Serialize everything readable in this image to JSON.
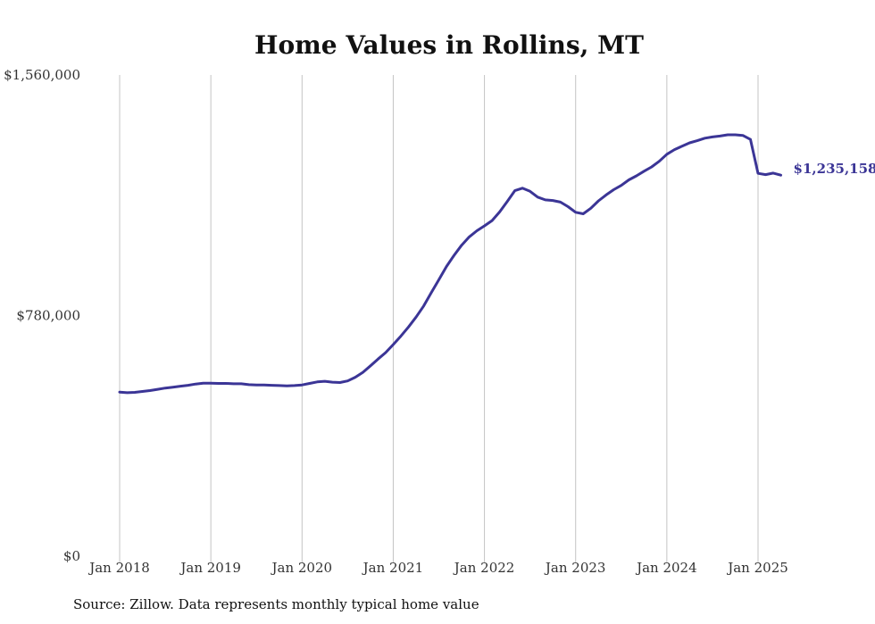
{
  "chart_data": {
    "type": "line",
    "title": "Home Values in Rollins, MT",
    "xlabel": "",
    "ylabel": "",
    "ylim": [
      0,
      1560000
    ],
    "yticks": [
      {
        "value": 0,
        "label": "$0"
      },
      {
        "value": 780000,
        "label": "$780,000"
      },
      {
        "value": 1560000,
        "label": "$1,560,000"
      }
    ],
    "xticks": [
      "Jan 2018",
      "Jan 2019",
      "Jan 2020",
      "Jan 2021",
      "Jan 2022",
      "Jan 2023",
      "Jan 2024",
      "Jan 2025"
    ],
    "grid": "vertical",
    "line_color": "#3b3596",
    "end_label": "$1,235,158",
    "series": [
      {
        "name": "",
        "x": [
          "2018-01",
          "2018-02",
          "2018-03",
          "2018-04",
          "2018-05",
          "2018-06",
          "2018-07",
          "2018-08",
          "2018-09",
          "2018-10",
          "2018-11",
          "2018-12",
          "2019-01",
          "2019-02",
          "2019-03",
          "2019-04",
          "2019-05",
          "2019-06",
          "2019-07",
          "2019-08",
          "2019-09",
          "2019-10",
          "2019-11",
          "2019-12",
          "2020-01",
          "2020-02",
          "2020-03",
          "2020-04",
          "2020-05",
          "2020-06",
          "2020-07",
          "2020-08",
          "2020-09",
          "2020-10",
          "2020-11",
          "2020-12",
          "2021-01",
          "2021-02",
          "2021-03",
          "2021-04",
          "2021-05",
          "2021-06",
          "2021-07",
          "2021-08",
          "2021-09",
          "2021-10",
          "2021-11",
          "2021-12",
          "2022-01",
          "2022-02",
          "2022-03",
          "2022-04",
          "2022-05",
          "2022-06",
          "2022-07",
          "2022-08",
          "2022-09",
          "2022-10",
          "2022-11",
          "2022-12",
          "2023-01",
          "2023-02",
          "2023-03",
          "2023-04",
          "2023-05",
          "2023-06",
          "2023-07",
          "2023-08",
          "2023-09",
          "2023-10",
          "2023-11",
          "2023-12",
          "2024-01",
          "2024-02",
          "2024-03",
          "2024-04",
          "2024-05",
          "2024-06",
          "2024-07",
          "2024-08",
          "2024-09",
          "2024-10",
          "2024-11",
          "2024-12",
          "2025-01",
          "2025-02",
          "2025-03",
          "2025-04"
        ],
        "values": [
          532000,
          530000,
          531000,
          534000,
          537000,
          541000,
          545000,
          548000,
          551000,
          554000,
          558000,
          561000,
          561000,
          560000,
          560000,
          559000,
          559000,
          556000,
          555000,
          555000,
          554000,
          553000,
          552000,
          553000,
          555000,
          560000,
          565000,
          567000,
          564000,
          563000,
          568000,
          580000,
          596000,
          617000,
          639000,
          660000,
          686000,
          713000,
          743000,
          775000,
          811000,
          854000,
          896000,
          939000,
          975000,
          1008000,
          1035000,
          1055000,
          1071000,
          1088000,
          1116000,
          1150000,
          1185000,
          1193000,
          1183000,
          1164000,
          1155000,
          1153000,
          1148000,
          1133000,
          1115000,
          1110000,
          1128000,
          1152000,
          1171000,
          1188000,
          1202000,
          1220000,
          1233000,
          1248000,
          1262000,
          1280000,
          1303000,
          1318000,
          1329000,
          1340000,
          1347000,
          1355000,
          1359000,
          1362000,
          1366000,
          1366000,
          1364000,
          1351000,
          1241000,
          1237000,
          1242000,
          1235158
        ]
      }
    ]
  },
  "footer": {
    "source": "Source: Zillow. Data represents monthly typical home value"
  }
}
